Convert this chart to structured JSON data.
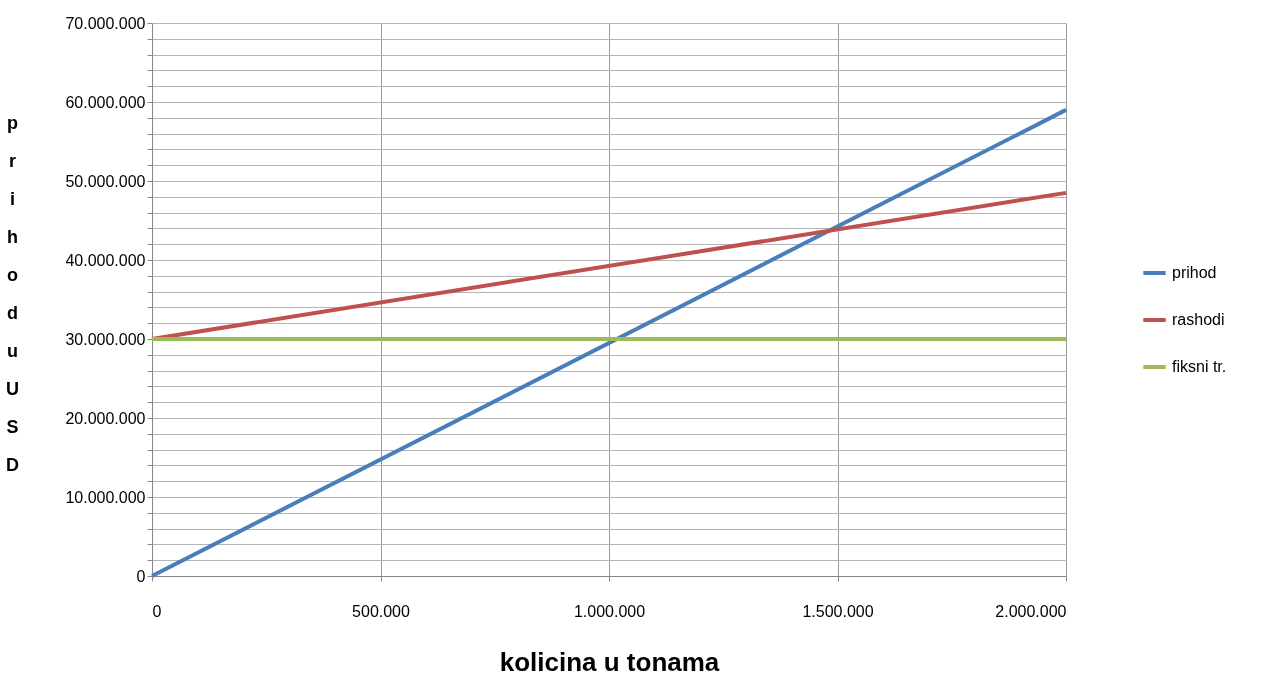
{
  "chart_data": {
    "type": "line",
    "xlabel": "kolicina u tonama",
    "ylabel": "prihod u USD",
    "x": [
      0,
      2000000
    ],
    "series": [
      {
        "name": "prihod",
        "color": "#4a7ebb",
        "values": [
          0,
          59000000
        ]
      },
      {
        "name": "rashodi",
        "color": "#c0504d",
        "values": [
          30000000,
          48500000
        ]
      },
      {
        "name": "fiksni tr.",
        "color": "#9bbb59",
        "values": [
          30000000,
          30000000
        ]
      }
    ],
    "xlim": [
      0,
      2000000
    ],
    "xticks": [
      {
        "value": 0,
        "label": "0"
      },
      {
        "value": 500000,
        "label": "500.000"
      },
      {
        "value": 1000000,
        "label": "1.000.000"
      },
      {
        "value": 1500000,
        "label": "1.500.000"
      },
      {
        "value": 2000000,
        "label": "2.000.000"
      }
    ],
    "ylim": [
      0,
      70000000
    ],
    "yticks": [
      {
        "value": 0,
        "label": "0"
      },
      {
        "value": 2000000,
        "label": null
      },
      {
        "value": 4000000,
        "label": null
      },
      {
        "value": 6000000,
        "label": null
      },
      {
        "value": 8000000,
        "label": null
      },
      {
        "value": 10000000,
        "label": "10.000.000"
      },
      {
        "value": 12000000,
        "label": null
      },
      {
        "value": 14000000,
        "label": null
      },
      {
        "value": 16000000,
        "label": null
      },
      {
        "value": 18000000,
        "label": null
      },
      {
        "value": 20000000,
        "label": "20.000.000"
      },
      {
        "value": 22000000,
        "label": null
      },
      {
        "value": 24000000,
        "label": null
      },
      {
        "value": 26000000,
        "label": null
      },
      {
        "value": 28000000,
        "label": null
      },
      {
        "value": 30000000,
        "label": "30.000.000"
      },
      {
        "value": 32000000,
        "label": null
      },
      {
        "value": 34000000,
        "label": null
      },
      {
        "value": 36000000,
        "label": null
      },
      {
        "value": 38000000,
        "label": null
      },
      {
        "value": 40000000,
        "label": "40.000.000"
      },
      {
        "value": 42000000,
        "label": null
      },
      {
        "value": 44000000,
        "label": null
      },
      {
        "value": 46000000,
        "label": null
      },
      {
        "value": 48000000,
        "label": null
      },
      {
        "value": 50000000,
        "label": "50.000.000"
      },
      {
        "value": 52000000,
        "label": null
      },
      {
        "value": 54000000,
        "label": null
      },
      {
        "value": 56000000,
        "label": null
      },
      {
        "value": 58000000,
        "label": null
      },
      {
        "value": 60000000,
        "label": "60.000.000"
      },
      {
        "value": 62000000,
        "label": null
      },
      {
        "value": 64000000,
        "label": null
      },
      {
        "value": 66000000,
        "label": null
      },
      {
        "value": 68000000,
        "label": null
      },
      {
        "value": 70000000,
        "label": "70.000.000"
      }
    ],
    "grid": true,
    "legend": "right",
    "marker": "none",
    "line_style": "solid"
  }
}
